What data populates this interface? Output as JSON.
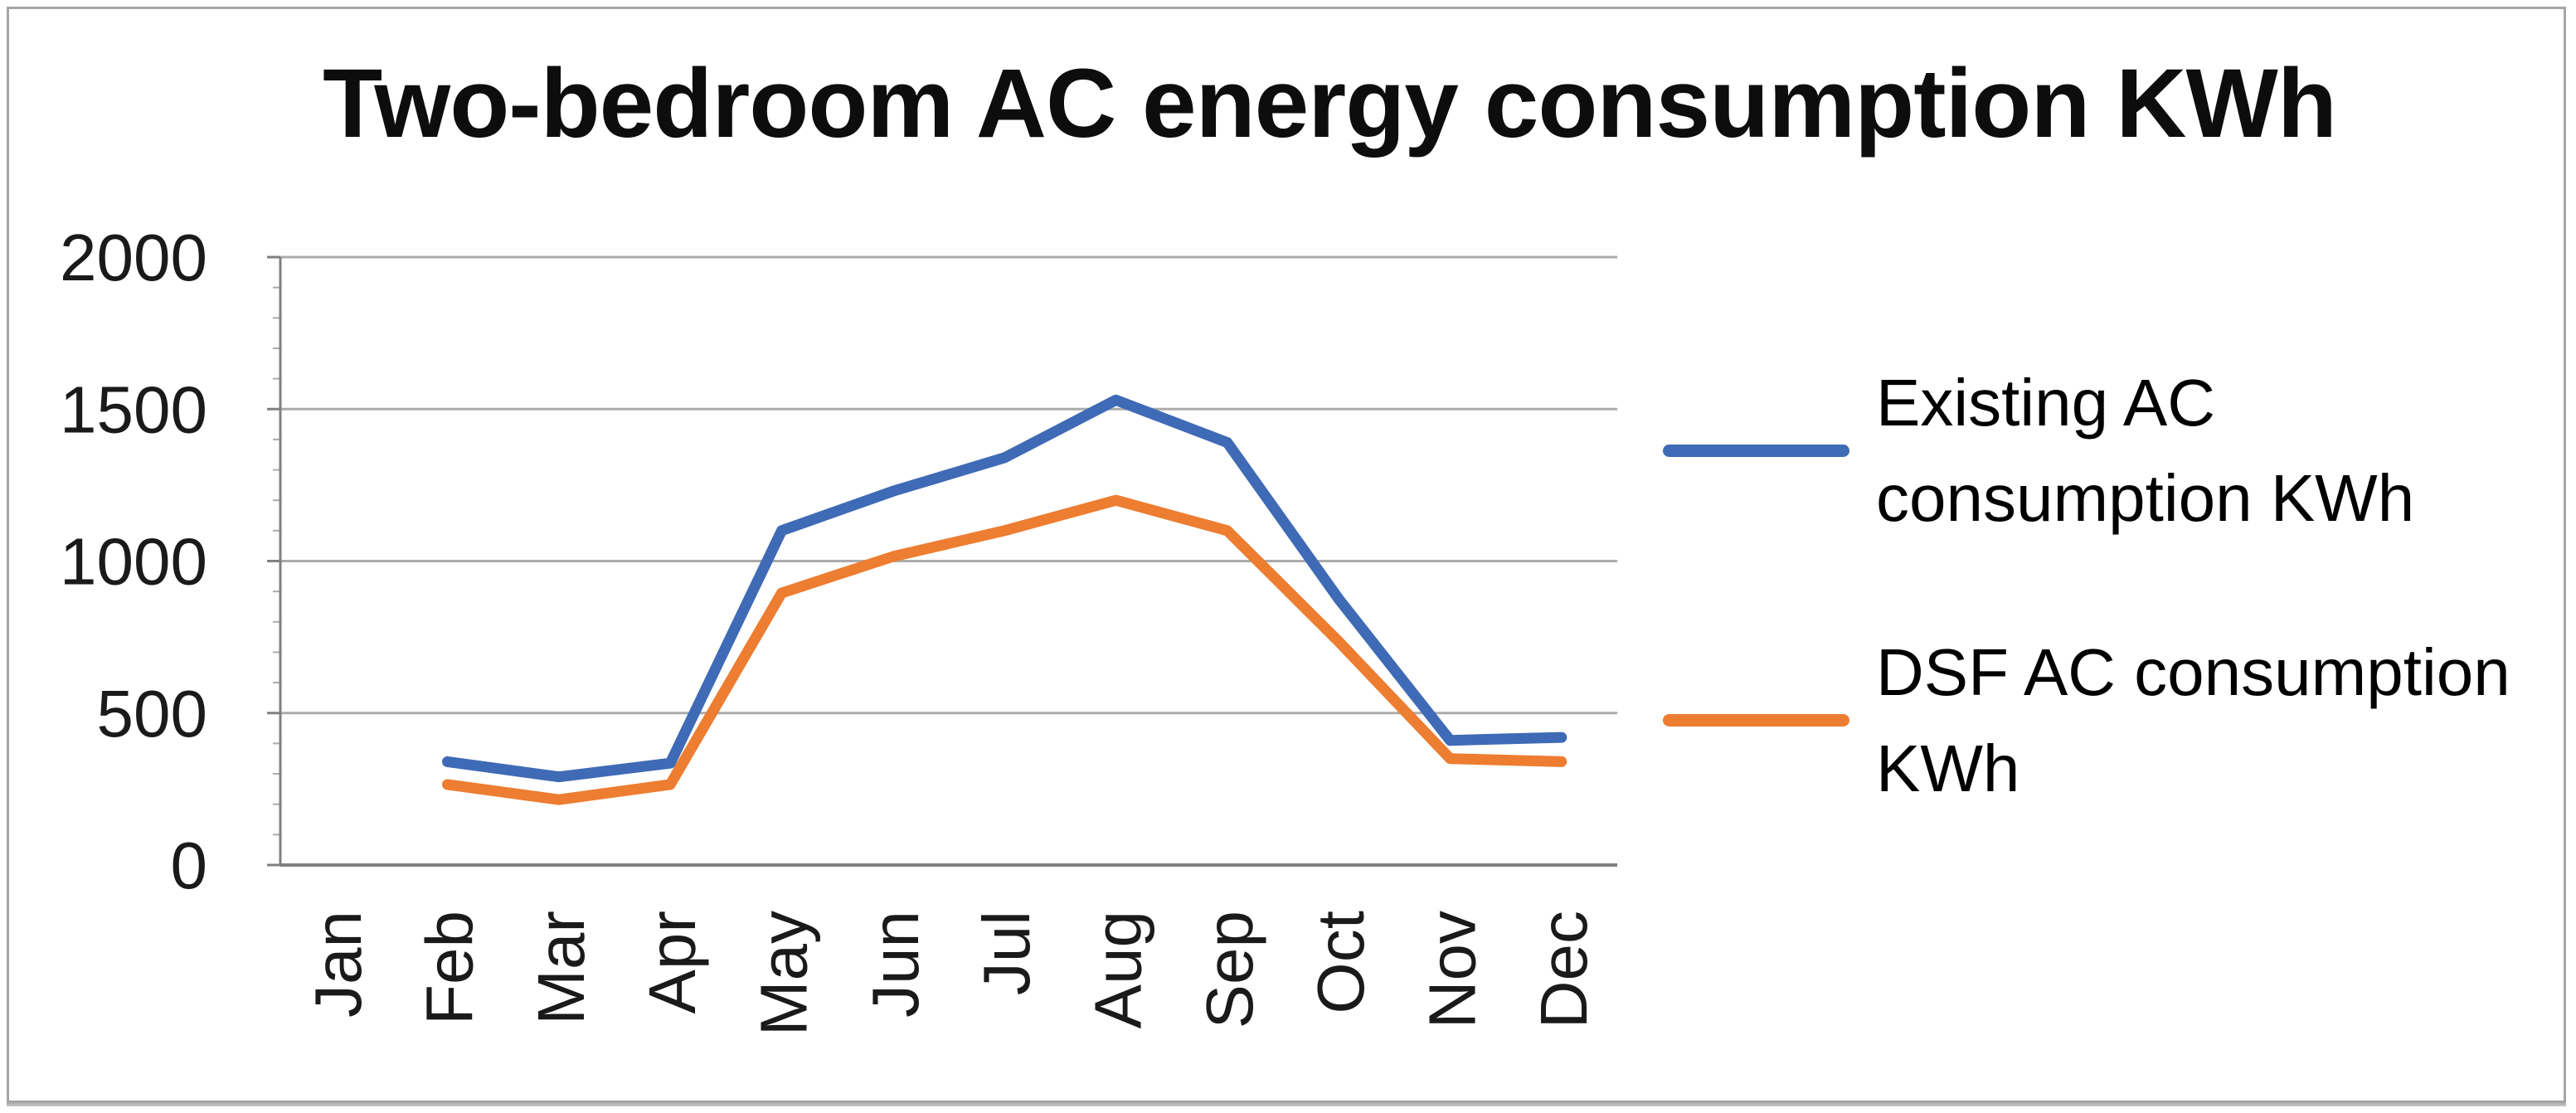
{
  "title": "Two-bedroom AC energy consumption KWh",
  "chart_data": {
    "type": "line",
    "title": "Two-bedroom AC energy consumption KWh",
    "categories": [
      "Jan",
      "Feb",
      "Mar",
      "Apr",
      "May",
      "Jun",
      "Jul",
      "Aug",
      "Sep",
      "Oct",
      "Nov",
      "Dec"
    ],
    "series": [
      {
        "name": "Existing AC consumption KWh",
        "legend_lines": [
          "Existing AC",
          "consumption KWh"
        ],
        "color": "#3f6ab5",
        "values": [
          null,
          340,
          290,
          335,
          1100,
          1230,
          1340,
          1530,
          1390,
          875,
          410,
          420
        ]
      },
      {
        "name": "DSF AC consumption KWh",
        "legend_lines": [
          "DSF AC consumption",
          "KWh"
        ],
        "color": "#ed7d31",
        "values": [
          null,
          265,
          215,
          265,
          895,
          1015,
          1100,
          1200,
          1100,
          735,
          350,
          340
        ]
      }
    ],
    "xlabel": "",
    "ylabel": "",
    "unit": "KWh",
    "ylim": [
      0,
      2000
    ],
    "y_ticks": [
      0,
      500,
      1000,
      1500,
      2000
    ],
    "grid": true,
    "legend_position": "right"
  },
  "colors": {
    "gridline": "#ababab",
    "axis": "#7f7f7f",
    "tick_label": "#1a1a1a",
    "title_text": "#0d0d0d",
    "series_blue": "#3f6ab5",
    "series_orange": "#ed7d31",
    "frame_border": "#a6a6a6"
  }
}
